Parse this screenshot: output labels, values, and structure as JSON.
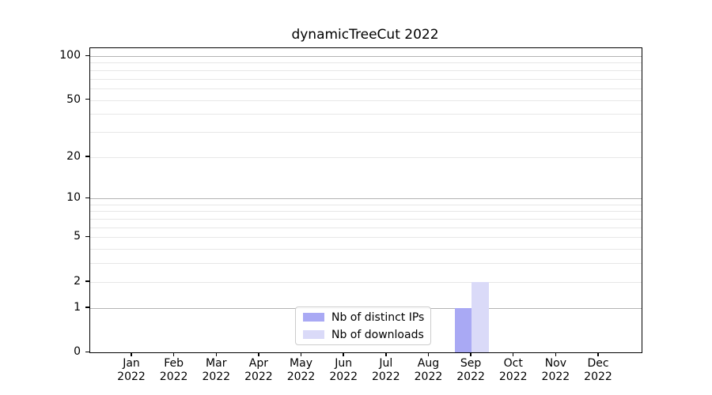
{
  "chart_data": {
    "type": "bar",
    "title": "dynamicTreeCut 2022",
    "months": [
      "Jan",
      "Feb",
      "Mar",
      "Apr",
      "May",
      "Jun",
      "Jul",
      "Aug",
      "Sep",
      "Oct",
      "Nov",
      "Dec"
    ],
    "year_label": "2022",
    "categories": [
      "Jan 2022",
      "Feb 2022",
      "Mar 2022",
      "Apr 2022",
      "May 2022",
      "Jun 2022",
      "Jul 2022",
      "Aug 2022",
      "Sep 2022",
      "Oct 2022",
      "Nov 2022",
      "Dec 2022"
    ],
    "series": [
      {
        "name": "Nb of distinct IPs",
        "color": "#a9a9f4",
        "values": [
          0,
          0,
          0,
          0,
          0,
          0,
          0,
          0,
          1,
          0,
          0,
          0
        ]
      },
      {
        "name": "Nb of downloads",
        "color": "#dadaf8",
        "values": [
          0,
          0,
          0,
          0,
          0,
          0,
          0,
          0,
          2,
          0,
          0,
          0
        ]
      }
    ],
    "y_axis": {
      "scale": "log1p",
      "tick_values": [
        0,
        1,
        2,
        5,
        10,
        20,
        50,
        100
      ],
      "major_gridlines": [
        1,
        10,
        100
      ],
      "minor_gridlines": [
        2,
        3,
        4,
        5,
        6,
        7,
        8,
        9,
        20,
        30,
        40,
        50,
        60,
        70,
        80,
        90
      ],
      "range": [
        0,
        100
      ]
    },
    "legend": {
      "position": "lower center",
      "entries": [
        "Nb of distinct IPs",
        "Nb of downloads"
      ]
    },
    "grid": true
  },
  "colors": {
    "background": "#ffffff",
    "spine": "#000000",
    "major_grid": "#b3b3b3",
    "minor_grid": "#e7e7e7",
    "text": "#000000",
    "legend_border": "#cccccc",
    "bar_distinct_ips": "#a9a9f4",
    "bar_downloads": "#dadaf8"
  }
}
